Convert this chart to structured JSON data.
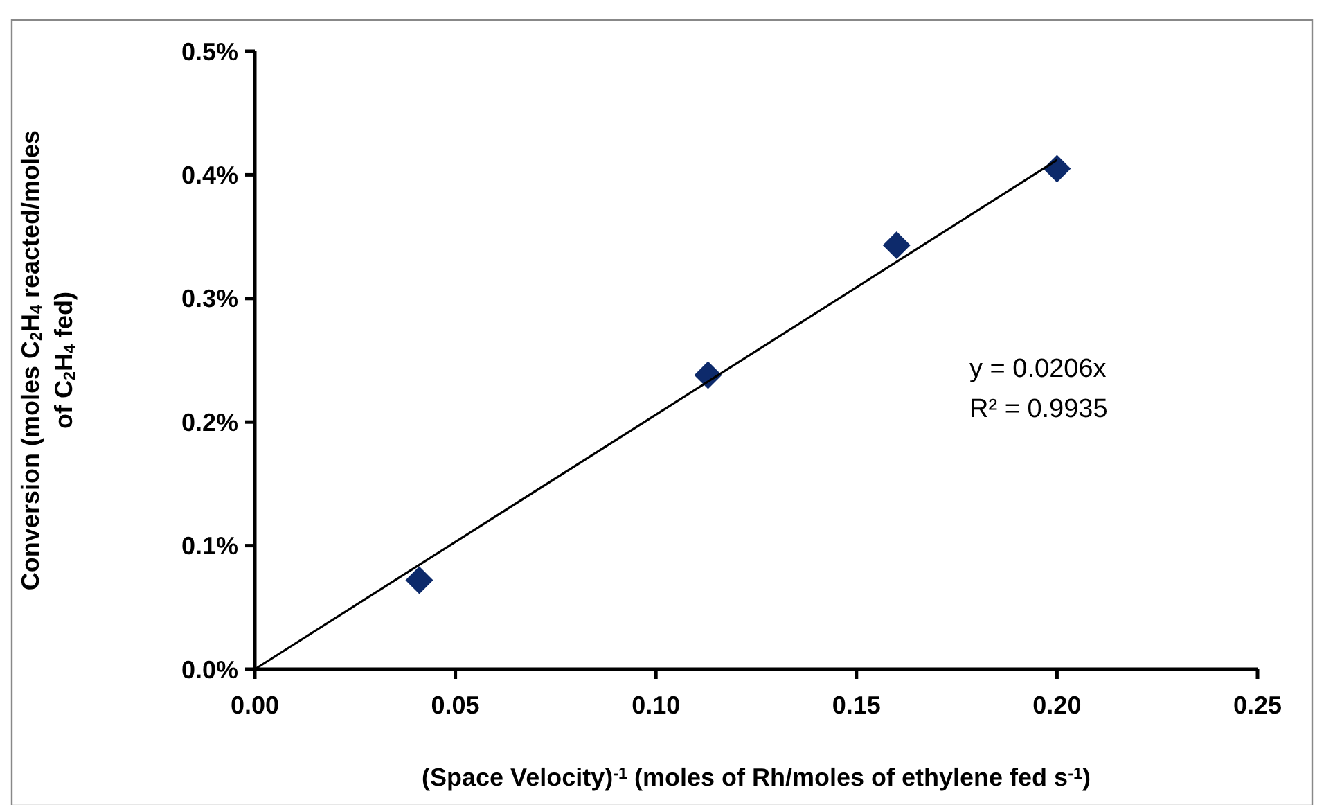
{
  "chart_data": {
    "type": "scatter",
    "xlabel": "(Space Velocity)$^{-1}$ (moles of Rh/moles of ethylene fed s$^{-1}$)",
    "ylabel": "Conversion (moles C$_{2}$H$_{4}$ reacted/moles of C$_{2}$H$_{4}$ fed)",
    "annotations": [
      "y = 0.0206x",
      "R² = 0.9935"
    ],
    "series": [
      {
        "color": "#0d2a6b",
        "x": [
          0.041,
          0.113,
          0.16,
          0.2
        ],
        "values": [
          0.072,
          0.238,
          0.343,
          0.405
        ],
        "marker": "diamond"
      },
      {
        "type": "line",
        "color": "#000000",
        "x": [
          0,
          0.2
        ],
        "values": [
          0,
          0.412
        ],
        "marker": "none",
        "line_style": "solid"
      }
    ],
    "xlim": [
      0,
      0.25
    ],
    "xticks": [
      {
        "value": 0,
        "label": "0.00"
      },
      {
        "value": 0.05,
        "label": "0.05"
      },
      {
        "value": 0.1,
        "label": "0.10"
      },
      {
        "value": 0.15,
        "label": "0.15"
      },
      {
        "value": 0.2,
        "label": "0.20"
      },
      {
        "value": 0.25,
        "label": "0.25"
      }
    ],
    "ylim": [
      0,
      0.5
    ],
    "yticks": [
      {
        "value": 0,
        "label": "0.0%"
      },
      {
        "value": 0.1,
        "label": "0.1%"
      },
      {
        "value": 0.2,
        "label": "0.2%"
      },
      {
        "value": 0.3,
        "label": "0.3%"
      },
      {
        "value": 0.4,
        "label": "0.4%"
      },
      {
        "value": 0.5,
        "label": "0.5%"
      }
    ],
    "grid": false
  }
}
